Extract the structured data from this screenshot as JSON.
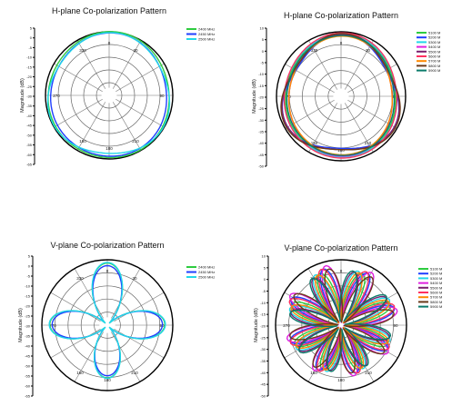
{
  "chart_data": [
    {
      "type": "polar",
      "title": "H-plane Co-polarization Pattern",
      "ylabel": "Magnitude (dB)",
      "radial_ticks": [
        "5",
        "0",
        "-5",
        "-10",
        "-15",
        "-20",
        "-25",
        "-30",
        "-35",
        "-40",
        "-45",
        "-50",
        "-55",
        "-60",
        "-65"
      ],
      "angle_labels": {
        "top": "0",
        "left": "270",
        "right": "90",
        "bottom": "180",
        "upper_left": "330",
        "upper_right": "30",
        "lower_left": "150",
        "lower_right": "210"
      },
      "visible_angle_labels": [
        "0",
        "30",
        "90",
        "120",
        "150",
        "180",
        "210",
        "270",
        "330"
      ],
      "rlim": [
        -65,
        5
      ],
      "legend": "top-right",
      "series": [
        {
          "name": "2400 MHz",
          "color": "#2ecc40",
          "shape": "omni",
          "params": {
            "a": 0.97,
            "b": 0.02,
            "n": 2
          }
        },
        {
          "name": "2450 MHz",
          "color": "#1f3fff",
          "shape": "omni",
          "params": {
            "a": 0.94,
            "b": 0.03,
            "n": 2
          }
        },
        {
          "name": "2500 MHz",
          "color": "#22d7e8",
          "shape": "omni",
          "params": {
            "a": 0.95,
            "b": 0.025,
            "n": 3
          }
        }
      ]
    },
    {
      "type": "polar",
      "title": "H-plane Co-polarization Pattern",
      "ylabel": "Magnitude (dB)",
      "radial_ticks": [
        "10",
        "5",
        "0",
        "-5",
        "-10",
        "-15",
        "-20",
        "-25",
        "-30",
        "-35",
        "-40",
        "-45",
        "-50"
      ],
      "angle_labels": {
        "top": "0",
        "left": "270",
        "right": "90",
        "bottom": "180",
        "upper_left": "330",
        "upper_right": "30",
        "lower_left": "150",
        "lower_right": "210"
      },
      "visible_angle_labels": [
        "0",
        "30",
        "90",
        "120",
        "150",
        "180",
        "210",
        "270",
        "330"
      ],
      "rlim": [
        -50,
        10
      ],
      "legend": "top-right",
      "series": [
        {
          "name": "5100 M",
          "color": "#2ecc40",
          "shape": "omni",
          "params": {
            "a": 0.9,
            "b": 0.05,
            "n": 2
          }
        },
        {
          "name": "5200 M",
          "color": "#1f3fff",
          "shape": "omni",
          "params": {
            "a": 0.88,
            "b": 0.06,
            "n": 3
          }
        },
        {
          "name": "5300 M",
          "color": "#22d7e8",
          "shape": "omni",
          "params": {
            "a": 0.91,
            "b": 0.04,
            "n": 2
          }
        },
        {
          "name": "5400 M",
          "color": "#e020e0",
          "shape": "omni",
          "params": {
            "a": 0.87,
            "b": 0.07,
            "n": 2
          }
        },
        {
          "name": "5500 M",
          "color": "#7a1f6e",
          "shape": "omni",
          "params": {
            "a": 0.89,
            "b": 0.05,
            "n": 3
          }
        },
        {
          "name": "5600 M",
          "color": "#ff3060",
          "shape": "omni",
          "params": {
            "a": 0.92,
            "b": 0.05,
            "n": 2
          }
        },
        {
          "name": "5700 M",
          "color": "#ff8800",
          "shape": "omni",
          "params": {
            "a": 0.86,
            "b": 0.06,
            "n": 2
          }
        },
        {
          "name": "5800 M",
          "color": "#6b3a1a",
          "shape": "omni",
          "params": {
            "a": 0.9,
            "b": 0.06,
            "n": 3
          }
        },
        {
          "name": "5900 M",
          "color": "#0a7a6a",
          "shape": "omni",
          "params": {
            "a": 0.88,
            "b": 0.05,
            "n": 2
          }
        }
      ]
    },
    {
      "type": "polar",
      "title": "V-plane Co-polarization Pattern",
      "ylabel": "Magnitude (dB)",
      "radial_ticks": [
        "5",
        "0",
        "-5",
        "-10",
        "-15",
        "-20",
        "-25",
        "-30",
        "-35",
        "-40",
        "-45",
        "-50",
        "-55",
        "-60",
        "-65"
      ],
      "angle_labels": {
        "top": "0",
        "left": "270",
        "right": "90",
        "bottom": "180",
        "upper_left": "330",
        "upper_right": "30",
        "lower_left": "150",
        "lower_right": "210"
      },
      "visible_angle_labels": [
        "0",
        "30",
        "90",
        "120",
        "150",
        "180",
        "210",
        "270",
        "330"
      ],
      "rlim": [
        -65,
        5
      ],
      "legend": "top-right",
      "series": [
        {
          "name": "2400 MHz",
          "color": "#2ecc40",
          "shape": "lobes",
          "params": {
            "k": 2,
            "phase": 45,
            "depth": 0.9,
            "base": 0.05
          }
        },
        {
          "name": "2450 MHz",
          "color": "#1f3fff",
          "shape": "lobes",
          "params": {
            "k": 2,
            "phase": 45,
            "depth": 0.85,
            "base": 0.06
          }
        },
        {
          "name": "2500 MHz",
          "color": "#22d7e8",
          "shape": "lobes",
          "params": {
            "k": 2,
            "phase": 45,
            "depth": 0.92,
            "base": 0.04
          }
        }
      ]
    },
    {
      "type": "polar",
      "title": "V-plane Co-polarization Pattern",
      "ylabel": "Magnitude (dB)",
      "radial_ticks": [
        "10",
        "5",
        "0",
        "-5",
        "-10",
        "-15",
        "-20",
        "-25",
        "-30",
        "-35",
        "-40",
        "-45",
        "-50"
      ],
      "angle_labels": {
        "top": "0",
        "left": "270",
        "right": "90",
        "bottom": "180",
        "upper_left": "330",
        "upper_right": "30",
        "lower_left": "150",
        "lower_right": "210"
      },
      "visible_angle_labels": [
        "0",
        "30",
        "90",
        "120",
        "150",
        "180",
        "210",
        "270",
        "330"
      ],
      "rlim": [
        -50,
        10
      ],
      "legend": "top-right",
      "series": [
        {
          "name": "5100 M",
          "color": "#2ecc40",
          "shape": "lobes",
          "params": {
            "k": 4,
            "phase": 0,
            "depth": 0.8,
            "base": 0.06
          }
        },
        {
          "name": "5200 M",
          "color": "#1f3fff",
          "shape": "lobes",
          "params": {
            "k": 4,
            "phase": 5,
            "depth": 0.85,
            "base": 0.05
          }
        },
        {
          "name": "5300 M",
          "color": "#22d7e8",
          "shape": "lobes",
          "params": {
            "k": 4,
            "phase": -5,
            "depth": 0.82,
            "base": 0.05
          }
        },
        {
          "name": "5400 M",
          "color": "#e020e0",
          "shape": "lobes",
          "params": {
            "k": 4,
            "phase": 8,
            "depth": 0.9,
            "base": 0.04
          }
        },
        {
          "name": "5500 M",
          "color": "#7a1f6e",
          "shape": "lobes",
          "params": {
            "k": 4,
            "phase": -8,
            "depth": 0.78,
            "base": 0.06
          }
        },
        {
          "name": "5600 M",
          "color": "#ff3060",
          "shape": "lobes",
          "params": {
            "k": 4,
            "phase": 3,
            "depth": 0.86,
            "base": 0.05
          }
        },
        {
          "name": "5700 M",
          "color": "#ff8800",
          "shape": "lobes",
          "params": {
            "k": 4,
            "phase": -3,
            "depth": 0.8,
            "base": 0.05
          }
        },
        {
          "name": "5800 M",
          "color": "#6b3a1a",
          "shape": "lobes",
          "params": {
            "k": 4,
            "phase": 10,
            "depth": 0.83,
            "base": 0.05
          }
        },
        {
          "name": "5900 M",
          "color": "#0a7a6a",
          "shape": "lobes",
          "params": {
            "k": 4,
            "phase": -10,
            "depth": 0.79,
            "base": 0.06
          }
        }
      ]
    }
  ]
}
